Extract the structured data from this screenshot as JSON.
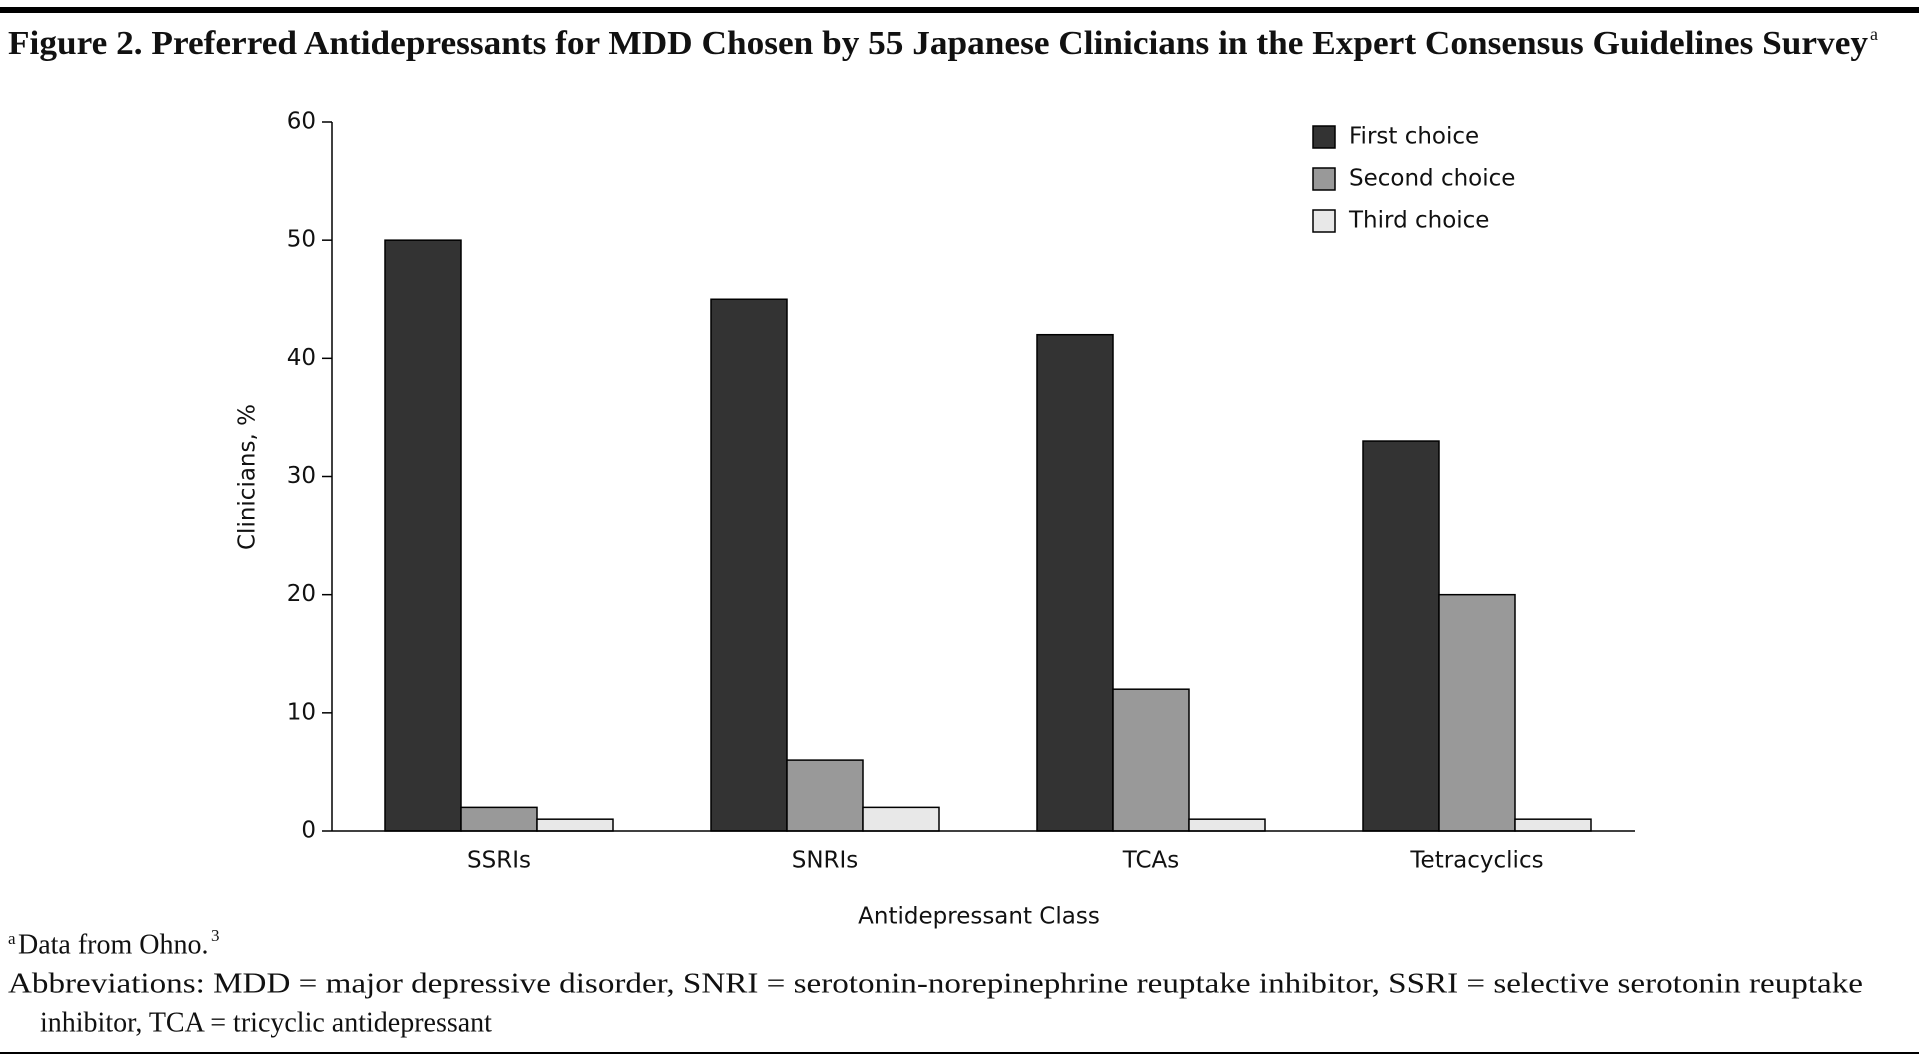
{
  "chart_data": {
    "type": "bar",
    "title": "Figure 2. Preferred Antidepressants for MDD Chosen by 55 Japanese Clinicians in the Expert Consensus Guidelines Survey",
    "title_sup": "a",
    "x_label": "Antidepressant Class",
    "y_label": "Clinicians, %",
    "categories": [
      "SSRIs",
      "SNRIs",
      "TCAs",
      "Tetracyclics"
    ],
    "series": [
      {
        "name": "First choice",
        "color": "#333333",
        "values": [
          50,
          45,
          42,
          33
        ]
      },
      {
        "name": "Second choice",
        "color": "#999999",
        "values": [
          2,
          6,
          12,
          20
        ]
      },
      {
        "name": "Third choice",
        "color": "#e8e8e8",
        "values": [
          1,
          2,
          1,
          1
        ]
      }
    ],
    "ylim": [
      0,
      60
    ],
    "yticks": [
      0,
      10,
      20,
      30,
      40,
      50,
      60
    ],
    "legend": "top-right",
    "footnote": {
      "sup": "a",
      "text": "Data from Ohno.",
      "ref": "3"
    },
    "abbreviations": [
      "Abbreviations: MDD = major depressive disorder, SNRI = serotonin-norepinephrine reuptake inhibitor, SSRI = selective serotonin reuptake",
      "inhibitor, TCA = tricyclic antidepressant"
    ]
  }
}
